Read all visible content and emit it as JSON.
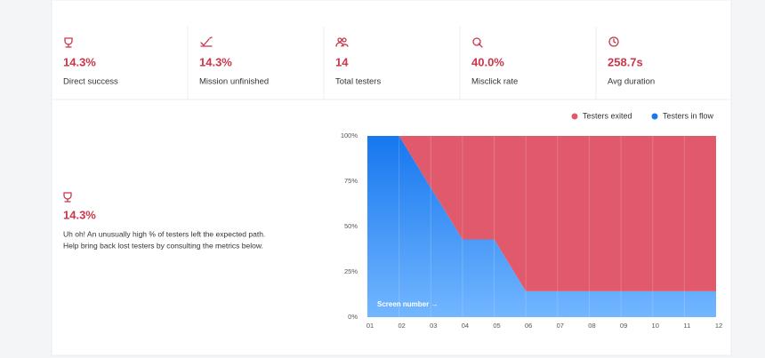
{
  "metrics": [
    {
      "value": "14.3%",
      "label": "Direct success"
    },
    {
      "value": "14.3%",
      "label": "Mission unfinished"
    },
    {
      "value": "14",
      "label": "Total testers"
    },
    {
      "value": "40.0%",
      "label": "Misclick rate"
    },
    {
      "value": "258.7s",
      "label": "Avg duration"
    }
  ],
  "callout": {
    "value": "14.3%",
    "lines": [
      "Uh oh! An unusually high % of testers left the expected path.",
      "Help bring back lost testers by consulting the metrics below."
    ]
  },
  "chart_data": {
    "type": "stacked_area",
    "categories": [
      "01",
      "02",
      "03",
      "04",
      "05",
      "06",
      "07",
      "08",
      "09",
      "10",
      "11",
      "12"
    ],
    "series": [
      {
        "name": "Testers exited",
        "color": "#e05a6b",
        "values": [
          0,
          0,
          28.6,
          57.1,
          57.1,
          85.7,
          85.7,
          85.7,
          85.7,
          85.7,
          85.7,
          85.7
        ]
      },
      {
        "name": "Testers in flow",
        "color": "#1677ee",
        "values": [
          100,
          100,
          71.4,
          42.9,
          42.9,
          14.3,
          14.3,
          14.3,
          14.3,
          14.3,
          14.3,
          14.3
        ]
      }
    ],
    "ylim": [
      0,
      100
    ],
    "yticks": [
      {
        "value": 0,
        "label": "0%"
      },
      {
        "value": 25,
        "label": "25%"
      },
      {
        "value": 50,
        "label": "50%"
      },
      {
        "value": 75,
        "label": "75%"
      },
      {
        "value": 100,
        "label": "100%"
      }
    ],
    "annotation": "Screen number →",
    "legend": "top-right"
  }
}
